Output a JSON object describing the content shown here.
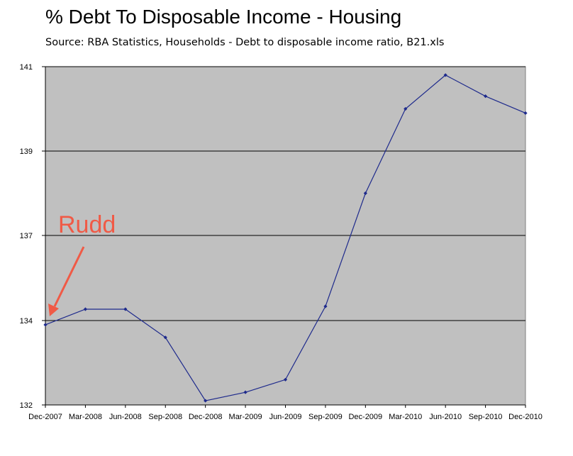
{
  "header": {
    "title": "% Debt To Disposable Income - Housing",
    "subtitle": "Source: RBA Statistics, Households - Debt to disposable income ratio, B21.xls"
  },
  "annotation": {
    "label": "Rudd",
    "color": "#f05a46"
  },
  "colors": {
    "plot_background": "#c0c0c0",
    "series_line": "#1e2a8c",
    "gridline": "#000000"
  },
  "chart_data": {
    "type": "line",
    "title": "% Debt To Disposable Income - Housing",
    "subtitle": "Source: RBA Statistics, Households - Debt to disposable income ratio, B21.xls",
    "xlabel": "",
    "ylabel": "",
    "categories": [
      "Dec-2007",
      "Mar-2008",
      "Jun-2008",
      "Sep-2008",
      "Dec-2008",
      "Mar-2009",
      "Jun-2009",
      "Sep-2009",
      "Dec-2009",
      "Mar-2010",
      "Jun-2010",
      "Sep-2010",
      "Dec-2010"
    ],
    "yticks": [
      132,
      134,
      137,
      139,
      141
    ],
    "ylim": [
      132,
      141
    ],
    "ytick_labels": [
      "132",
      "134",
      "137",
      "139",
      "141"
    ],
    "grid": "horizontal",
    "legend": "none",
    "series": [
      {
        "values": [
          133.9,
          134.4,
          134.4,
          133.6,
          132.1,
          132.3,
          132.6,
          134.5,
          138.0,
          140.0,
          140.8,
          140.3,
          139.9
        ]
      }
    ]
  }
}
